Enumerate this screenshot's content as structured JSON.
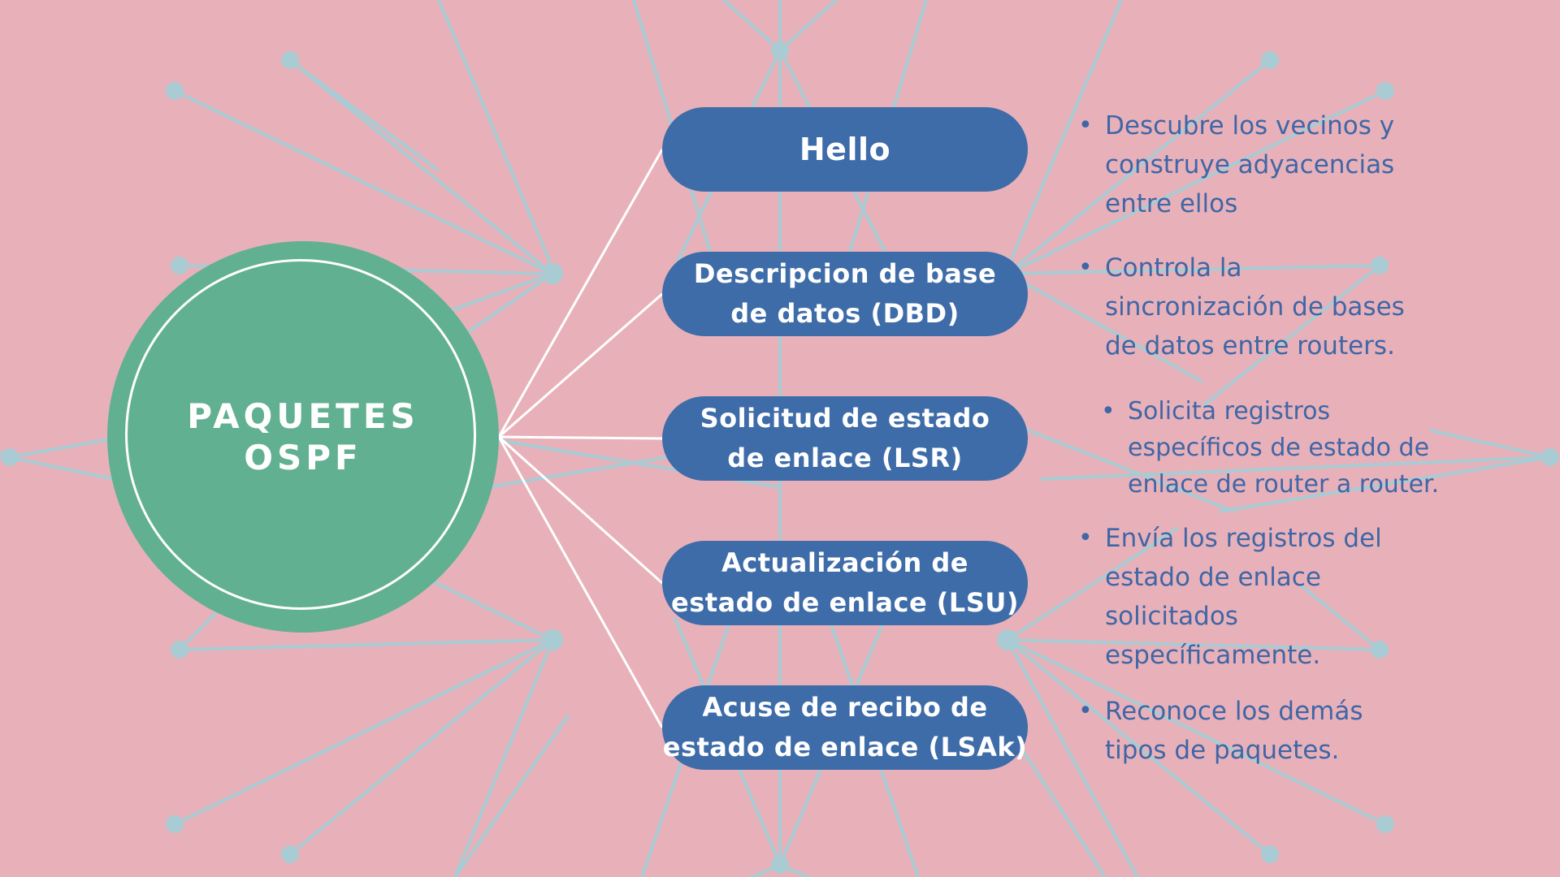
{
  "hub": {
    "title_line1": "PAQUETES",
    "title_line2": "OSPF"
  },
  "packets": [
    {
      "label": "Hello",
      "description": [
        "Descubre los vecinos y",
        "construye adyacencias",
        "entre ellos"
      ]
    },
    {
      "label": "Descripcion de base\nde datos (DBD)",
      "description": [
        "Controla la",
        "sincronización de bases",
        "de datos entre routers."
      ]
    },
    {
      "label": "Solicitud de estado\nde enlace (LSR)",
      "description": [
        "Solicita registros",
        "específicos de estado de",
        "enlace de router a router."
      ]
    },
    {
      "label": "Actualización de\nestado de enlace (LSU)",
      "description": [
        "Envía los registros del",
        "estado de enlace",
        "solicitados",
        "específicamente."
      ]
    },
    {
      "label": "Acuse de recibo de\nestado de enlace  (LSAk)",
      "description": [
        "Reconoce los demás",
        "tipos de paquetes."
      ]
    }
  ],
  "colors": {
    "background": "#e8b1b9",
    "hub": "#62b092",
    "pill": "#3e6ca8",
    "text_blue": "#3f66a6",
    "network_lines": "#a9cbd3",
    "connectors": "#ffffff"
  }
}
